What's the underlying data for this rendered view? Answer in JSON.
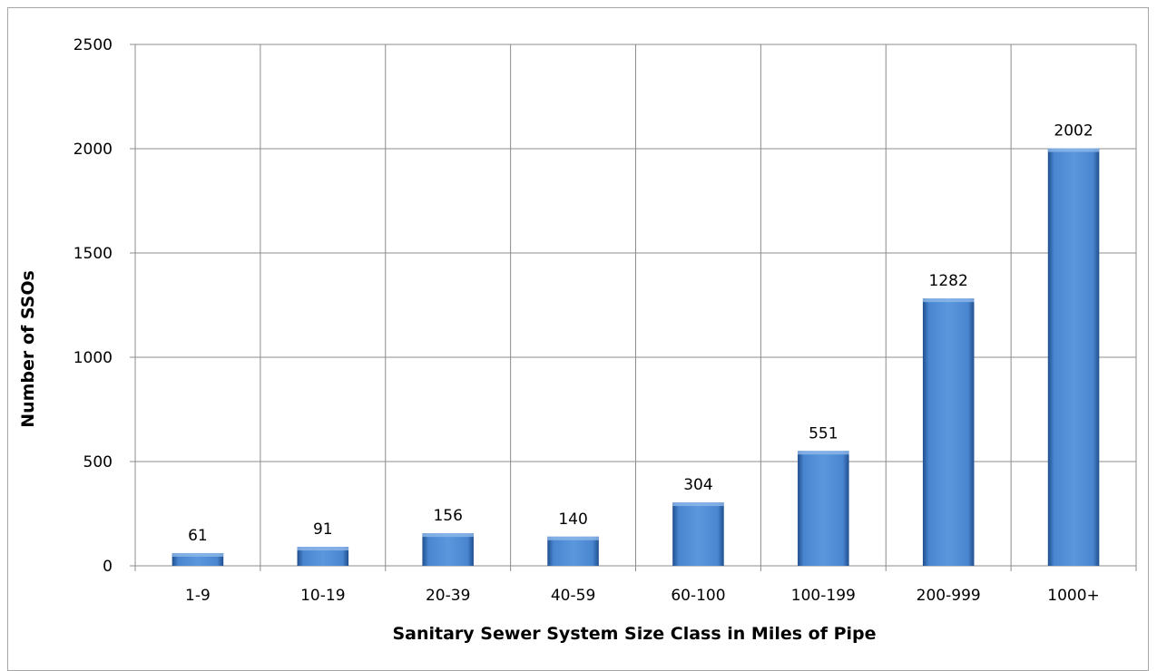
{
  "chart_data": {
    "type": "bar",
    "title": "",
    "xlabel": "Sanitary Sewer System Size Class in Miles of Pipe",
    "ylabel": "Number of SSOs",
    "categories": [
      "1-9",
      "10-19",
      "20-39",
      "40-59",
      "60-100",
      "100-199",
      "200-999",
      "1000+"
    ],
    "values": [
      61,
      91,
      156,
      140,
      304,
      551,
      1282,
      2002
    ],
    "data_labels": [
      "61",
      "91",
      "156",
      "140",
      "304",
      "551",
      "1282",
      "2002"
    ],
    "ylim": [
      0,
      2500
    ],
    "yticks": [
      0,
      500,
      1000,
      1500,
      2000,
      2500
    ],
    "ytick_labels": [
      "0",
      "500",
      "1000",
      "1500",
      "2000",
      "2500"
    ],
    "grid": "horizontal and vertical",
    "legend": "none",
    "bar_color": "#4a86d0",
    "bar_color_dark": "#1f4f8f",
    "grid_color": "#8c8c8c"
  }
}
